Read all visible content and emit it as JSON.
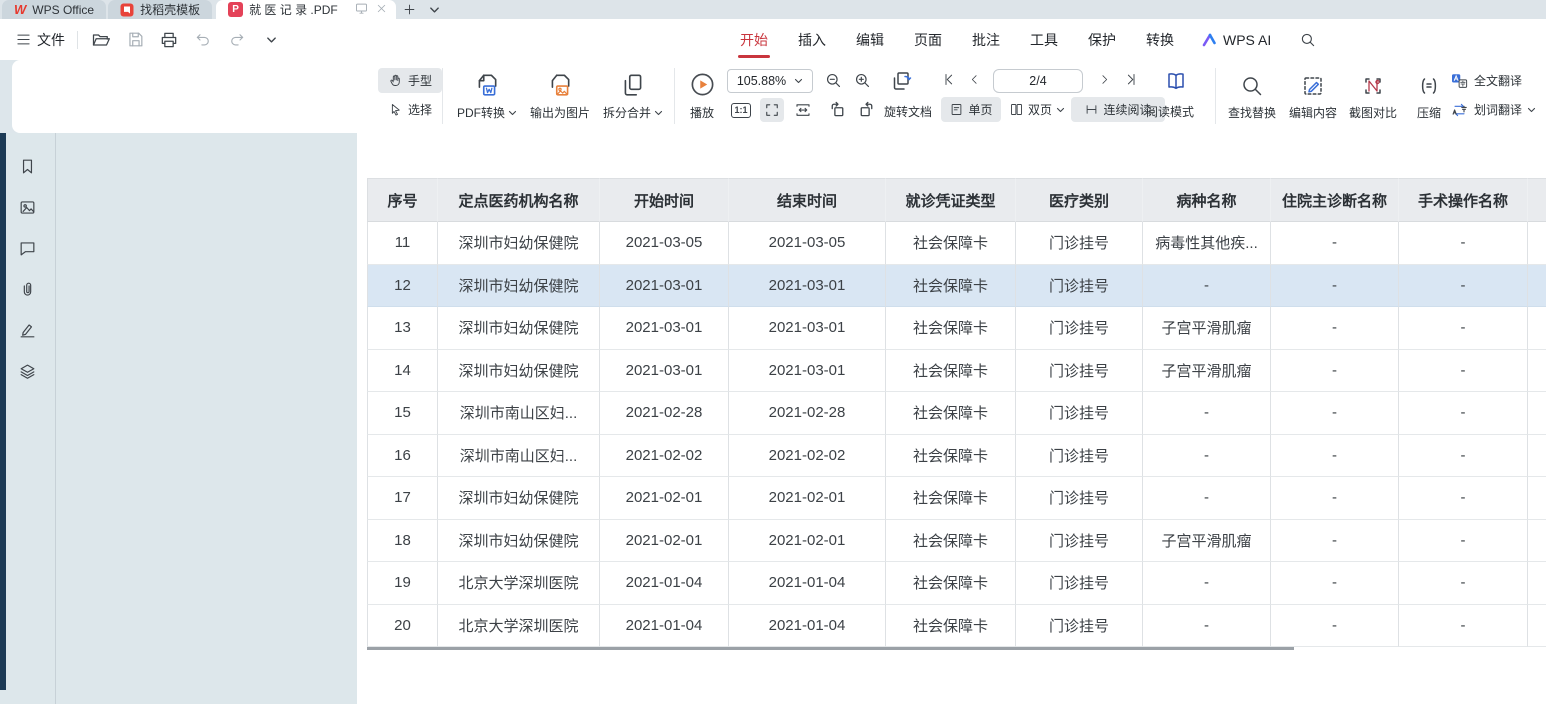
{
  "icons": {
    "wps_logo": "W",
    "pdf_badge": "P"
  },
  "tab_bar": {
    "tabs": [
      {
        "label": "WPS Office"
      },
      {
        "label": "找稻壳模板"
      },
      {
        "label": "就 医 记 录 .PDF"
      }
    ]
  },
  "menu_bar": {
    "file_label": "文件",
    "items": [
      "开始",
      "插入",
      "编辑",
      "页面",
      "批注",
      "工具",
      "保护",
      "转换"
    ],
    "wps_ai_label": "WPS AI"
  },
  "toolbar": {
    "hand_label": "手型",
    "select_label": "选择",
    "pdf_convert_label": "PDF转换",
    "export_image_label": "输出为图片",
    "split_merge_label": "拆分合并",
    "play_label": "播放",
    "zoom_value": "105.88%",
    "one_to_one_label": "1:1",
    "page_indicator": "2/4",
    "rotate_doc_label": "旋转文档",
    "single_page_label": "单页",
    "double_page_label": "双页",
    "continuous_label": "连续阅读",
    "read_mode_label": "阅读模式",
    "find_replace_label": "查找替换",
    "edit_content_label": "编辑内容",
    "screenshot_compare_label": "截图对比",
    "compress_label": "压缩",
    "full_translate_label": "全文翻译",
    "word_translate_label": "划词翻译"
  },
  "document_table": {
    "headers": [
      "序号",
      "定点医药机构名称",
      "开始时间",
      "结束时间",
      "就诊凭证类型",
      "医疗类别",
      "病种名称",
      "住院主诊断名称",
      "手术操作名称"
    ],
    "rows": [
      {
        "highlight": false,
        "cells": [
          "11",
          "深圳市妇幼保健院",
          "2021-03-05",
          "2021-03-05",
          "社会保障卡",
          "门诊挂号",
          "病毒性其他疾...",
          "-",
          "-"
        ]
      },
      {
        "highlight": true,
        "cells": [
          "12",
          "深圳市妇幼保健院",
          "2021-03-01",
          "2021-03-01",
          "社会保障卡",
          "门诊挂号",
          "-",
          "-",
          "-"
        ]
      },
      {
        "highlight": false,
        "cells": [
          "13",
          "深圳市妇幼保健院",
          "2021-03-01",
          "2021-03-01",
          "社会保障卡",
          "门诊挂号",
          "子宫平滑肌瘤",
          "-",
          "-"
        ]
      },
      {
        "highlight": false,
        "cells": [
          "14",
          "深圳市妇幼保健院",
          "2021-03-01",
          "2021-03-01",
          "社会保障卡",
          "门诊挂号",
          "子宫平滑肌瘤",
          "-",
          "-"
        ]
      },
      {
        "highlight": false,
        "cells": [
          "15",
          "深圳市南山区妇...",
          "2021-02-28",
          "2021-02-28",
          "社会保障卡",
          "门诊挂号",
          "-",
          "-",
          "-"
        ]
      },
      {
        "highlight": false,
        "cells": [
          "16",
          "深圳市南山区妇...",
          "2021-02-02",
          "2021-02-02",
          "社会保障卡",
          "门诊挂号",
          "-",
          "-",
          "-"
        ]
      },
      {
        "highlight": false,
        "cells": [
          "17",
          "深圳市妇幼保健院",
          "2021-02-01",
          "2021-02-01",
          "社会保障卡",
          "门诊挂号",
          "-",
          "-",
          "-"
        ]
      },
      {
        "highlight": false,
        "cells": [
          "18",
          "深圳市妇幼保健院",
          "2021-02-01",
          "2021-02-01",
          "社会保障卡",
          "门诊挂号",
          "子宫平滑肌瘤",
          "-",
          "-"
        ]
      },
      {
        "highlight": false,
        "cells": [
          "19",
          "北京大学深圳医院",
          "2021-01-04",
          "2021-01-04",
          "社会保障卡",
          "门诊挂号",
          "-",
          "-",
          "-"
        ]
      },
      {
        "highlight": false,
        "cells": [
          "20",
          "北京大学深圳医院",
          "2021-01-04",
          "2021-01-04",
          "社会保障卡",
          "门诊挂号",
          "-",
          "-",
          "-"
        ]
      }
    ]
  },
  "colors": {
    "accent_red": "#c9353d",
    "pdf_badge_red": "#e44258",
    "highlight_row": "#d9e6f3",
    "table_header_bg": "#e9ebee",
    "canvas_bg": "#dde7eb",
    "edge_strip": "#1c3a55",
    "link_blue": "#3a6fd8"
  }
}
